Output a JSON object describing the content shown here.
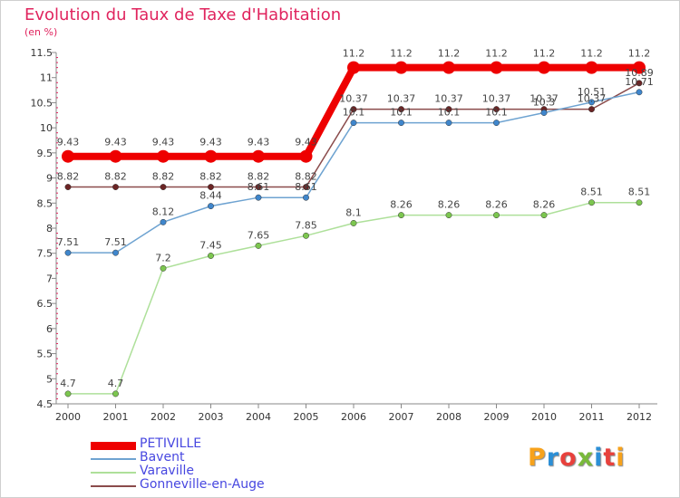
{
  "title": "Evolution du Taux de Taxe d'Habitation",
  "subtitle": "(en %)",
  "logo": {
    "letters": [
      "P",
      "r",
      "o",
      "x",
      "i",
      "t",
      "i"
    ],
    "colors": [
      "#f7a21b",
      "#2c8fd6",
      "#e8413c",
      "#79b93b",
      "#2c8fd6",
      "#e8413c",
      "#f7a21b"
    ]
  },
  "chart_data": {
    "type": "line",
    "x": [
      "2000",
      "2001",
      "2002",
      "2003",
      "2004",
      "2005",
      "2006",
      "2007",
      "2008",
      "2009",
      "2010",
      "2011",
      "2012"
    ],
    "ylim": [
      4.5,
      11.5
    ],
    "yticks": [
      "4.5",
      "5",
      "5.5",
      "6",
      "6.5",
      "7",
      "7.5",
      "8",
      "8.5",
      "9",
      "9.5",
      "10",
      "10.5",
      "11",
      "11.5"
    ],
    "grid": false,
    "legend_position": "bottom-left",
    "series": [
      {
        "name": "PETIVILLE",
        "color": "#ee0000",
        "thick": true,
        "values": [
          9.43,
          9.43,
          9.43,
          9.43,
          9.43,
          9.43,
          11.2,
          11.2,
          11.2,
          11.2,
          11.2,
          11.2,
          11.2
        ],
        "labels": [
          "9.43",
          "9.43",
          "9.43",
          "9.43",
          "9.43",
          "9.43",
          "11.2",
          "11.2",
          "11.2",
          "11.2",
          "11.2",
          "11.2",
          "11.2"
        ]
      },
      {
        "name": "Bavent",
        "color": "#6ea3d1",
        "marker": "#3f86cc",
        "values": [
          7.51,
          7.51,
          8.12,
          8.44,
          8.61,
          8.61,
          10.1,
          10.1,
          10.1,
          10.1,
          10.3,
          10.51,
          10.71
        ],
        "labels": [
          "7.51",
          "7.51",
          "8.12",
          "8.44",
          "8.61",
          "8.61",
          "10.1",
          "10.1",
          "10.1",
          "10.1",
          "10.3",
          "10.51",
          "10.71"
        ]
      },
      {
        "name": "Varaville",
        "color": "#aee09a",
        "marker": "#7cc64f",
        "values": [
          4.7,
          4.7,
          7.2,
          7.45,
          7.65,
          7.85,
          8.1,
          8.26,
          8.26,
          8.26,
          8.26,
          8.51,
          8.51
        ],
        "labels": [
          "4.7",
          "4.7",
          "7.2",
          "7.45",
          "7.65",
          "7.85",
          "8.1",
          "8.26",
          "8.26",
          "8.26",
          "8.26",
          "8.51",
          "8.51"
        ]
      },
      {
        "name": "Gonneville-en-Auge",
        "color": "#8a4b4b",
        "marker": "#6b2424",
        "values": [
          8.82,
          8.82,
          8.82,
          8.82,
          8.82,
          8.82,
          10.37,
          10.37,
          10.37,
          10.37,
          10.37,
          10.37,
          10.89
        ],
        "labels": [
          "8.82",
          "8.82",
          "8.82",
          "8.82",
          "8.82",
          "8.82",
          "10.37",
          "10.37",
          "10.37",
          "10.37",
          "10.37",
          "10.37",
          "10.89"
        ]
      }
    ]
  }
}
